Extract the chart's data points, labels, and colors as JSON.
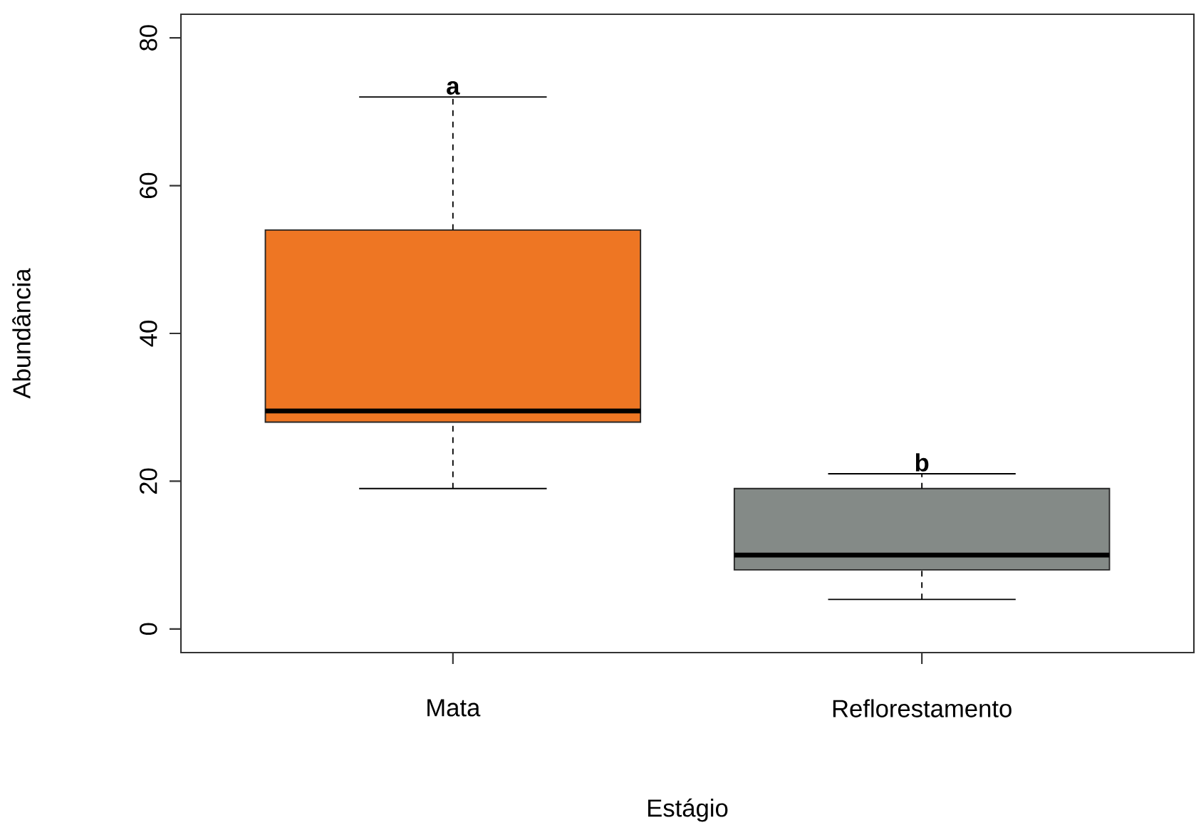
{
  "chart_data": {
    "type": "box",
    "xlabel": "Estágio",
    "ylabel": "Abundância",
    "categories": [
      "Mata",
      "Reflorestamento"
    ],
    "colors": [
      "#ee7623",
      "#848a87"
    ],
    "boxes": [
      {
        "low": 19,
        "q1": 28,
        "median": 29.5,
        "q3": 54,
        "high": 72
      },
      {
        "low": 4,
        "q1": 8,
        "median": 10,
        "q3": 19,
        "high": 21
      }
    ],
    "ylim": [
      -3.2,
      83.2
    ],
    "yticks": [
      0,
      20,
      40,
      60,
      80
    ],
    "grid": false,
    "annotations": [
      "a",
      "b"
    ]
  }
}
